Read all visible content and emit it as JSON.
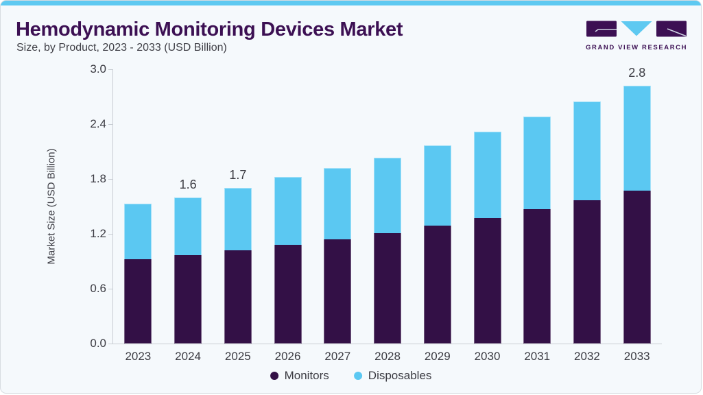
{
  "header": {
    "title": "Hemodynamic Monitoring Devices Market",
    "subtitle": "Size, by Product, 2023 - 2033 (USD Billion)"
  },
  "logo": {
    "name": "Grand View Research",
    "text": "GRAND VIEW RESEARCH",
    "purple": "#3c1053",
    "blue": "#5ec9f1"
  },
  "chart_data": {
    "type": "bar",
    "stacked": true,
    "title": "Hemodynamic Monitoring Devices Market Size, by Product, 2023 - 2033 (USD Billion)",
    "categories": [
      "2023",
      "2024",
      "2025",
      "2026",
      "2027",
      "2028",
      "2029",
      "2030",
      "2031",
      "2032",
      "2033"
    ],
    "series": [
      {
        "name": "Monitors",
        "color": "#331046",
        "values": [
          0.92,
          0.97,
          1.02,
          1.08,
          1.14,
          1.21,
          1.29,
          1.37,
          1.47,
          1.57,
          1.67
        ]
      },
      {
        "name": "Disposables",
        "color": "#5bc8f2",
        "values": [
          0.61,
          0.63,
          0.68,
          0.74,
          0.78,
          0.82,
          0.88,
          0.95,
          1.01,
          1.08,
          1.15
        ]
      }
    ],
    "total_labels": {
      "2024": "1.6",
      "2025": "1.7",
      "2033": "2.8"
    },
    "xlabel": "",
    "ylabel": "Market Size (USD Billion)",
    "ylim": [
      0.0,
      3.0
    ],
    "yticks": [
      "0.0",
      "0.6",
      "1.2",
      "1.8",
      "2.4",
      "3.0"
    ],
    "grid": false,
    "legend_position": "bottom"
  },
  "colors": {
    "card_bg": "#f5f9fc",
    "card_border": "#d7dce1",
    "top_strip": "#5ec9f1",
    "axis": "#c7ccd2",
    "text": "#3b3b42",
    "title": "#3c1053"
  }
}
